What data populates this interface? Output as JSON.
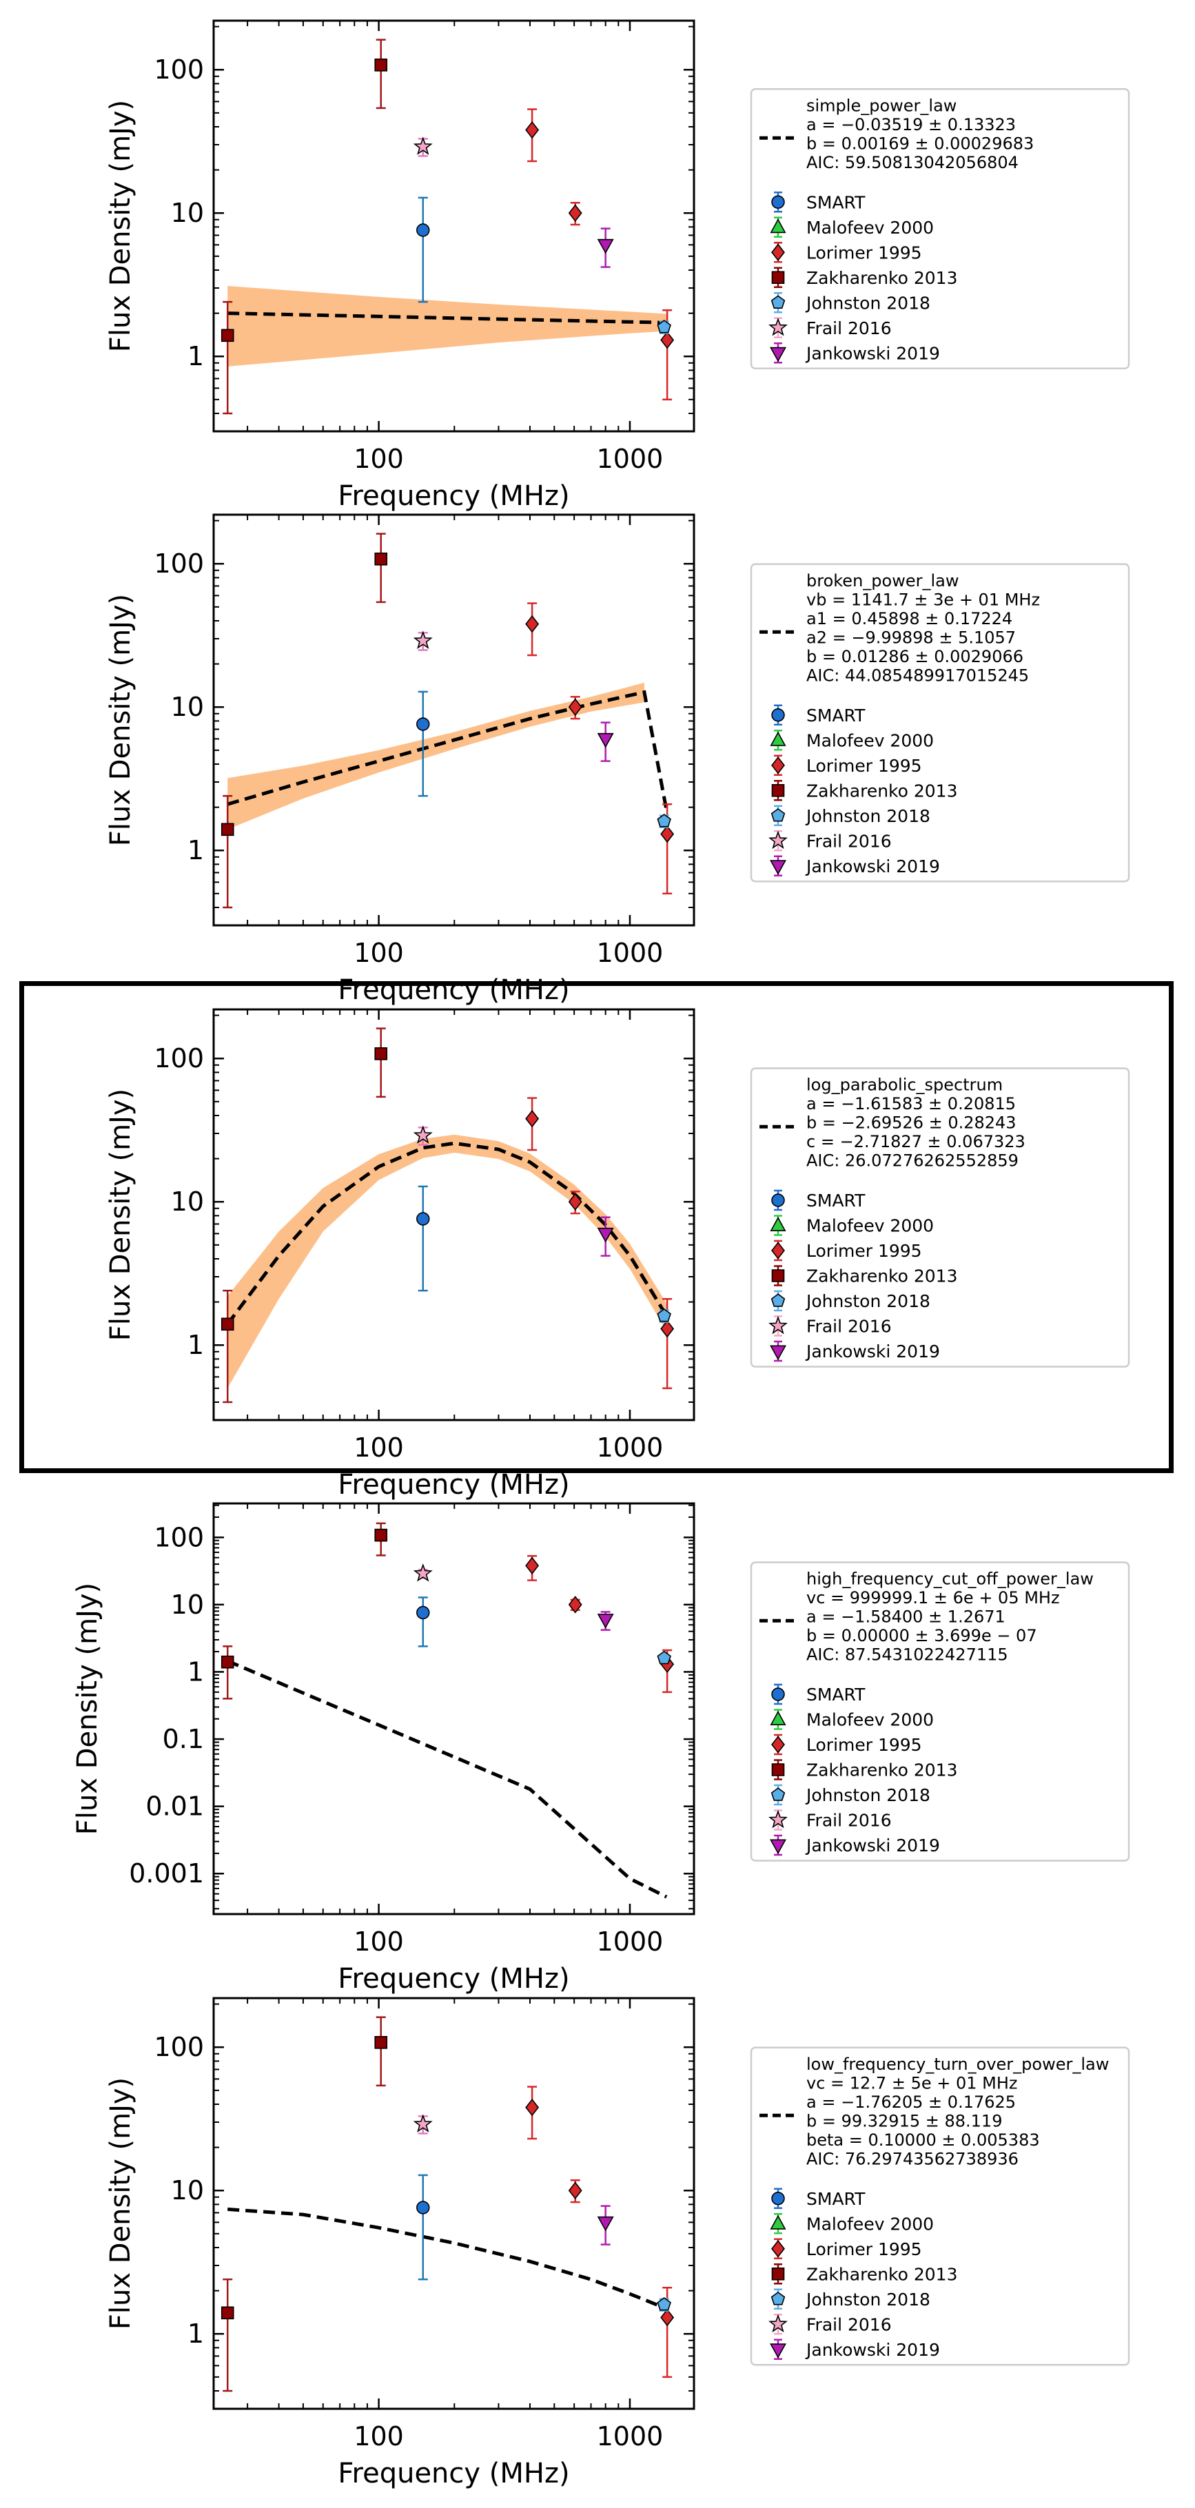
{
  "chart_data": [
    {
      "type": "scatter",
      "model": "simple_power_law",
      "xlabel": "Frequency (MHz)",
      "ylabel": "Flux Density (mJy)",
      "x_scale": "log",
      "y_scale": "log",
      "xlim": [
        22,
        1800
      ],
      "ylim": [
        0.3,
        220
      ],
      "x_ticks": [
        {
          "v": 100,
          "label": "100"
        },
        {
          "v": 1000,
          "label": "1000"
        }
      ],
      "y_ticks": [
        {
          "v": 1,
          "label": "1"
        },
        {
          "v": 10,
          "label": "10"
        },
        {
          "v": 100,
          "label": "100"
        }
      ],
      "highlighted": false,
      "legend": {
        "position": "right",
        "fit_lines": [
          "simple_power_law",
          "a = −0.03519 ± 0.13323",
          "b = 0.00169 ± 0.00029683",
          "AIC: 59.50813042056804"
        ],
        "entries": [
          "SMART",
          "Malofeev 2000",
          "Lorimer 1995",
          "Zakharenko 2013",
          "Johnston 2018",
          "Frail 2016",
          "Jankowski 2019"
        ]
      },
      "fit_curve": [
        [
          25,
          2.0
        ],
        [
          100,
          1.9
        ],
        [
          300,
          1.82
        ],
        [
          1000,
          1.74
        ],
        [
          1400,
          1.72
        ]
      ],
      "fit_band": {
        "x": [
          25,
          100,
          300,
          1000,
          1400
        ],
        "lower": [
          0.85,
          1.05,
          1.25,
          1.45,
          1.5
        ],
        "upper": [
          3.1,
          2.6,
          2.3,
          2.05,
          1.98
        ]
      },
      "show_band": true
    },
    {
      "type": "scatter",
      "model": "broken_power_law",
      "xlabel": "Frequency (MHz)",
      "ylabel": "Flux Density (mJy)",
      "x_scale": "log",
      "y_scale": "log",
      "xlim": [
        22,
        1800
      ],
      "ylim": [
        0.3,
        220
      ],
      "x_ticks": [
        {
          "v": 100,
          "label": "100"
        },
        {
          "v": 1000,
          "label": "1000"
        }
      ],
      "y_ticks": [
        {
          "v": 1,
          "label": "1"
        },
        {
          "v": 10,
          "label": "10"
        },
        {
          "v": 100,
          "label": "100"
        }
      ],
      "highlighted": false,
      "legend": {
        "position": "right",
        "fit_lines": [
          "broken_power_law",
          "vb = 1141.7 ± 3e + 01 MHz",
          "a1 = 0.45898 ± 0.17224",
          "a2 = −9.99898 ± 5.1057",
          "b = 0.01286 ± 0.0029066",
          "AIC: 44.085489917015245"
        ],
        "entries": [
          "SMART",
          "Malofeev 2000",
          "Lorimer 1995",
          "Zakharenko 2013",
          "Johnston 2018",
          "Frail 2016",
          "Jankowski 2019"
        ]
      },
      "fit_curve": [
        [
          25,
          2.1
        ],
        [
          50,
          3.0
        ],
        [
          100,
          4.2
        ],
        [
          200,
          5.9
        ],
        [
          400,
          8.3
        ],
        [
          700,
          10.5
        ],
        [
          1141,
          12.7
        ],
        [
          1400,
          1.9
        ]
      ],
      "fit_band": {
        "x": [
          25,
          50,
          100,
          200,
          400,
          700,
          1141
        ],
        "lower": [
          1.4,
          2.3,
          3.5,
          5.1,
          7.3,
          9.3,
          10.8
        ],
        "upper": [
          3.2,
          3.9,
          5.0,
          6.7,
          9.4,
          11.8,
          14.8
        ]
      },
      "show_band": true
    },
    {
      "type": "scatter",
      "model": "log_parabolic_spectrum",
      "xlabel": "Frequency (MHz)",
      "ylabel": "Flux Density (mJy)",
      "x_scale": "log",
      "y_scale": "log",
      "xlim": [
        22,
        1800
      ],
      "ylim": [
        0.3,
        220
      ],
      "x_ticks": [
        {
          "v": 100,
          "label": "100"
        },
        {
          "v": 1000,
          "label": "1000"
        }
      ],
      "y_ticks": [
        {
          "v": 1,
          "label": "1"
        },
        {
          "v": 10,
          "label": "10"
        },
        {
          "v": 100,
          "label": "100"
        }
      ],
      "highlighted": true,
      "legend": {
        "position": "right",
        "fit_lines": [
          "log_parabolic_spectrum",
          "a = −1.61583 ± 0.20815",
          "b = −2.69526 ± 0.28243",
          "c = −2.71827 ± 0.067323",
          "AIC: 26.07276262552859"
        ],
        "entries": [
          "SMART",
          "Malofeev 2000",
          "Lorimer 1995",
          "Zakharenko 2013",
          "Johnston 2018",
          "Frail 2016",
          "Jankowski 2019"
        ]
      },
      "fit_curve": [
        [
          25,
          1.4
        ],
        [
          40,
          4.2
        ],
        [
          60,
          9.3
        ],
        [
          100,
          17.6
        ],
        [
          150,
          23.8
        ],
        [
          200,
          25.6
        ],
        [
          300,
          23.2
        ],
        [
          400,
          18.9
        ],
        [
          600,
          11.4
        ],
        [
          800,
          6.9
        ],
        [
          1000,
          4.2
        ],
        [
          1400,
          1.6
        ]
      ],
      "fit_band": {
        "x": [
          25,
          40,
          60,
          100,
          150,
          200,
          300,
          400,
          600,
          800,
          1000,
          1400
        ],
        "lower": [
          0.5,
          2.1,
          6.2,
          14.2,
          20.2,
          22.0,
          19.9,
          16.3,
          9.7,
          5.7,
          3.4,
          1.25
        ],
        "upper": [
          2.2,
          6.2,
          12.5,
          21.5,
          27.5,
          29.4,
          26.5,
          21.7,
          13.2,
          8.2,
          5.1,
          1.95
        ]
      },
      "show_band": true
    },
    {
      "type": "scatter",
      "model": "high_frequency_cut_off_power_law",
      "xlabel": "Frequency (MHz)",
      "ylabel": "Flux Density (mJy)",
      "x_scale": "log",
      "y_scale": "log",
      "xlim": [
        22,
        1800
      ],
      "ylim": [
        0.00025,
        320
      ],
      "x_ticks": [
        {
          "v": 100,
          "label": "100"
        },
        {
          "v": 1000,
          "label": "1000"
        }
      ],
      "y_ticks": [
        {
          "v": 0.001,
          "label": "0.001"
        },
        {
          "v": 0.01,
          "label": "0.01"
        },
        {
          "v": 0.1,
          "label": "0.1"
        },
        {
          "v": 1,
          "label": "1"
        },
        {
          "v": 10,
          "label": "10"
        },
        {
          "v": 100,
          "label": "100"
        }
      ],
      "highlighted": false,
      "legend": {
        "position": "right",
        "fit_lines": [
          "high_frequency_cut_off_power_law",
          "vc = 999999.1 ± 6e + 05 MHz",
          "a = −1.58400 ± 1.2671",
          "b = 0.00000 ± 3.699e − 07",
          "AIC: 87.5431022427115"
        ],
        "entries": [
          "SMART",
          "Malofeev 2000",
          "Lorimer 1995",
          "Zakharenko 2013",
          "Johnston 2018",
          "Frail 2016",
          "Jankowski 2019"
        ]
      },
      "fit_curve": [
        [
          25,
          1.45
        ],
        [
          100,
          0.162
        ],
        [
          400,
          0.018
        ],
        [
          1000,
          0.00084
        ],
        [
          1400,
          0.00045
        ]
      ],
      "show_band": false
    },
    {
      "type": "scatter",
      "model": "low_frequency_turn_over_power_law",
      "xlabel": "Frequency (MHz)",
      "ylabel": "Flux Density (mJy)",
      "x_scale": "log",
      "y_scale": "log",
      "xlim": [
        22,
        1800
      ],
      "ylim": [
        0.3,
        220
      ],
      "x_ticks": [
        {
          "v": 100,
          "label": "100"
        },
        {
          "v": 1000,
          "label": "1000"
        }
      ],
      "y_ticks": [
        {
          "v": 1,
          "label": "1"
        },
        {
          "v": 10,
          "label": "10"
        },
        {
          "v": 100,
          "label": "100"
        }
      ],
      "highlighted": false,
      "legend": {
        "position": "right",
        "fit_lines": [
          "low_frequency_turn_over_power_law",
          "vc = 12.7 ± 5e + 01 MHz",
          "a = −1.76205 ± 0.17625",
          "b = 99.32915 ± 88.119",
          "beta = 0.10000 ± 0.005383",
          "AIC: 76.29743562738936"
        ],
        "entries": [
          "SMART",
          "Malofeev 2000",
          "Lorimer 1995",
          "Zakharenko 2013",
          "Johnston 2018",
          "Frail 2016",
          "Jankowski 2019"
        ]
      },
      "fit_curve": [
        [
          25,
          7.4
        ],
        [
          50,
          6.8
        ],
        [
          100,
          5.5
        ],
        [
          200,
          4.3
        ],
        [
          400,
          3.2
        ],
        [
          700,
          2.4
        ],
        [
          1000,
          1.9
        ],
        [
          1400,
          1.5
        ]
      ],
      "show_band": false
    }
  ],
  "data_points": [
    {
      "survey": "SMART",
      "x": 150,
      "y": 7.6,
      "ylo": 2.4,
      "yhi": 12.8,
      "marker": "circle",
      "color": "#1f6fd0",
      "ecolor": "#1f77b4"
    },
    {
      "survey": "Malofeev 2000",
      "x": 102,
      "y": 110,
      "ylo": 55,
      "yhi": 165,
      "marker": "triangle",
      "color": "#2ecc40",
      "ecolor": "#2ca02c",
      "hidden": true
    },
    {
      "survey": "Lorimer 1995",
      "x": 408,
      "y": 38,
      "ylo": 23,
      "yhi": 53,
      "marker": "diamond",
      "color": "#d62728",
      "ecolor": "#d62728"
    },
    {
      "survey": "Lorimer 1995",
      "x": 606,
      "y": 10,
      "ylo": 8.3,
      "yhi": 11.8,
      "marker": "diamond",
      "color": "#d62728",
      "ecolor": "#d62728"
    },
    {
      "survey": "Lorimer 1995",
      "x": 1408,
      "y": 1.3,
      "ylo": 0.5,
      "yhi": 2.1,
      "marker": "diamond",
      "color": "#d62728",
      "ecolor": "#d62728"
    },
    {
      "survey": "Zakharenko 2013",
      "x": 25,
      "y": 1.4,
      "ylo": 0.4,
      "yhi": 2.4,
      "marker": "square",
      "color": "#8b0000",
      "ecolor": "#a01818"
    },
    {
      "survey": "Zakharenko 2013",
      "x": 102,
      "y": 108,
      "ylo": 54,
      "yhi": 162,
      "marker": "square",
      "color": "#8b0000",
      "ecolor": "#a01818"
    },
    {
      "survey": "Johnston 2018",
      "x": 1369,
      "y": 1.6,
      "ylo": 1.45,
      "yhi": 1.75,
      "marker": "pentagon",
      "color": "#5aaee8",
      "ecolor": "#5aaee8"
    },
    {
      "survey": "Frail 2016",
      "x": 150,
      "y": 29,
      "ylo": 25,
      "yhi": 33,
      "marker": "star",
      "color": "#f4a6c6",
      "ecolor": "#e377c2"
    },
    {
      "survey": "Jankowski 2019",
      "x": 800,
      "y": 6,
      "ylo": 4.2,
      "yhi": 7.8,
      "marker": "tri_down",
      "color": "#b01ab0",
      "ecolor": "#b01ab0"
    }
  ],
  "legend_styles": [
    {
      "label": "SMART",
      "marker": "circle",
      "color": "#1f6fd0"
    },
    {
      "label": "Malofeev 2000",
      "marker": "triangle",
      "color": "#2ecc40"
    },
    {
      "label": "Lorimer 1995",
      "marker": "diamond",
      "color": "#d62728"
    },
    {
      "label": "Zakharenko 2013",
      "marker": "square",
      "color": "#8b0000"
    },
    {
      "label": "Johnston 2018",
      "marker": "pentagon",
      "color": "#5aaee8"
    },
    {
      "label": "Frail 2016",
      "marker": "star",
      "color": "#f4a6c6"
    },
    {
      "label": "Jankowski 2019",
      "marker": "tri_down",
      "color": "#b01ab0"
    }
  ],
  "colors": {
    "band": "#fdbf8a",
    "fit_line": "#000000",
    "axes": "#000000"
  }
}
